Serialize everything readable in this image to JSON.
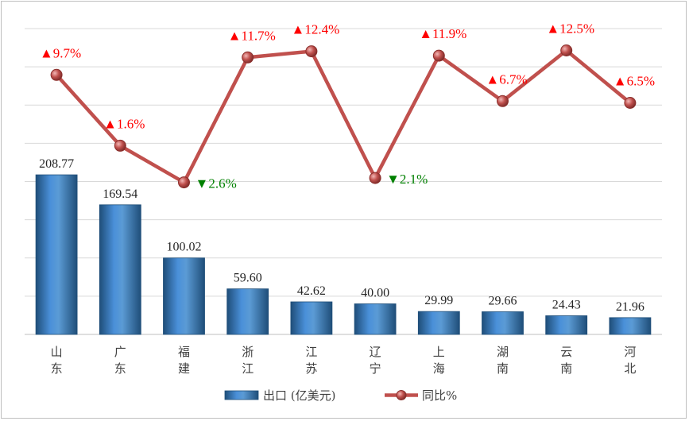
{
  "chart_data": {
    "type": "bar",
    "categories": [
      "山东",
      "广东",
      "福建",
      "浙江",
      "江苏",
      "辽宁",
      "上海",
      "湖南",
      "云南",
      "河北"
    ],
    "series": [
      {
        "name": "出口 (亿美元)",
        "type": "bar",
        "values": [
          208.77,
          169.54,
          100.02,
          59.6,
          42.62,
          40.0,
          29.99,
          29.66,
          24.43,
          21.96
        ],
        "labels": [
          "208.77",
          "169.54",
          "100.02",
          "59.60",
          "42.62",
          "40.00",
          "29.99",
          "29.66",
          "24.43",
          "21.96"
        ],
        "color": "#2e75b6"
      },
      {
        "name": "同比%",
        "type": "line",
        "values": [
          9.7,
          1.6,
          -2.6,
          11.7,
          12.4,
          -2.1,
          11.9,
          6.7,
          12.5,
          6.5
        ],
        "labels": [
          "▲9.7%",
          "▲1.6%",
          "▼2.6%",
          "▲11.7%",
          "▲12.4%",
          "▼2.1%",
          "▲11.9%",
          "▲6.7%",
          "▲12.5%",
          "▲6.5%"
        ],
        "color": "#c0504d"
      }
    ],
    "ylim_bar": [
      0,
      400
    ],
    "ylim_line": [
      -20,
      15
    ],
    "grid": true,
    "legend": "bottom"
  },
  "colors": {
    "bar": "#2e75b6",
    "line": "#c0504d",
    "up": "#ff0000",
    "down": "#008000",
    "grid": "#d9d9d9"
  }
}
